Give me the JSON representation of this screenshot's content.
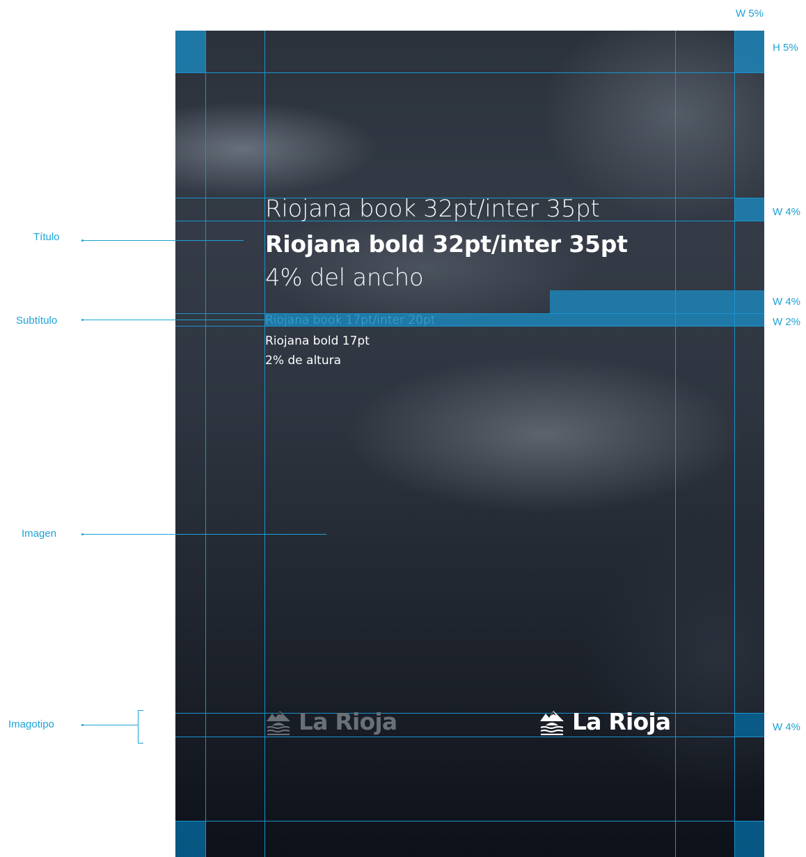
{
  "annotations": {
    "left": {
      "titulo": "Título",
      "subtitulo": "Subtítulo",
      "imagen": "Imagen",
      "imagotipo": "Imagotipo"
    },
    "right": {
      "margin_w": "W 5%",
      "margin_h": "H 5%",
      "title_band": "W 4%",
      "subtitle_gap": "W 4%",
      "subtitle_band": "W 2%",
      "logo_band": "W 4%"
    }
  },
  "poster": {
    "title": {
      "line1": "Riojana book 32pt/inter 35pt",
      "line2": "Riojana bold 32pt/inter 35pt",
      "line3": "4% del ancho"
    },
    "subtitle": {
      "line1": "Riojana book 17pt/inter 20pt",
      "line2": "Riojana bold 17pt",
      "line3": "2% de altura"
    },
    "logos": {
      "grey_text": "La Rioja",
      "white_text": "La Rioja"
    }
  },
  "colors": {
    "guide": "#1b93cf",
    "annotation": "#1ba3d6",
    "block": "#1c88be",
    "background_dark": "#0d1119"
  }
}
